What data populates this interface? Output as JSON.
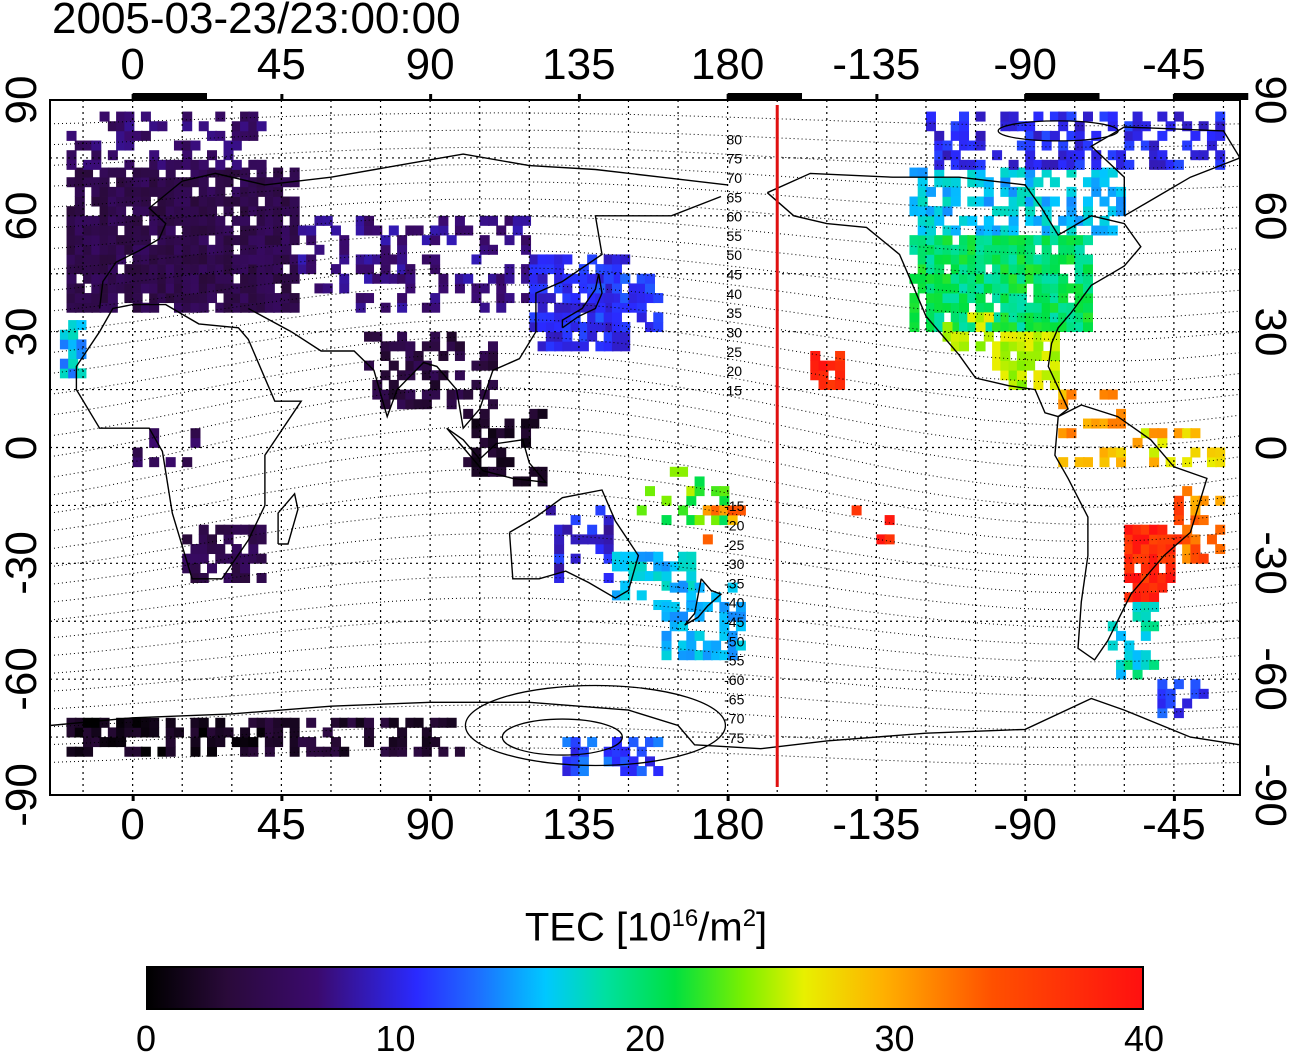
{
  "title": "2005-03-23/23:00:00",
  "map": {
    "projection": "equirectangular",
    "lon_range": [
      -25,
      335
    ],
    "lat_range": [
      -90,
      90
    ],
    "x_tick_labels": [
      "0",
      "45",
      "90",
      "135",
      "180",
      "-135",
      "-90",
      "-45"
    ],
    "y_tick_labels": [
      "90",
      "60",
      "30",
      "0",
      "-30",
      "-60",
      "-90"
    ],
    "contour_labels": [
      "80",
      "75",
      "70",
      "65",
      "60",
      "55",
      "50",
      "45",
      "40",
      "35",
      "30",
      "25",
      "20",
      "15",
      "-15",
      "-20",
      "-25",
      "-30",
      "-35",
      "-40",
      "-45",
      "-50",
      "-55",
      "-60",
      "-65",
      "-70",
      "-75"
    ],
    "terminator_line": {
      "color": "#e01010",
      "lon": 195
    },
    "colorbar": {
      "title_main": "TEC  [10",
      "title_exp": "16",
      "title_tail": "/m",
      "title_exp2": "2",
      "title_end": "]",
      "min": 0,
      "max": 40,
      "ticks": [
        "0",
        "10",
        "20",
        "30",
        "40"
      ]
    }
  }
}
